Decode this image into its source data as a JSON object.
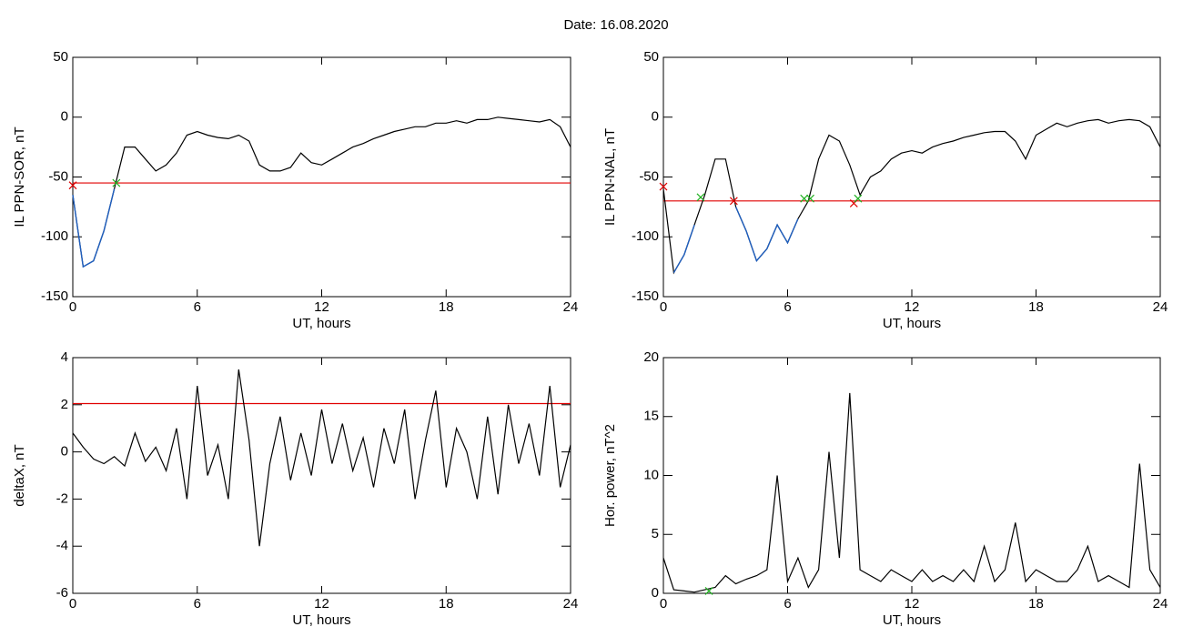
{
  "title": "Date:  16.08.2020",
  "chart_data": [
    {
      "type": "line",
      "ylabel": "IL PPN-SOR, nT",
      "xlabel": "UT, hours",
      "color": "#000000",
      "below_color": "#1f5fbf",
      "threshold": -55,
      "threshold_color": "#e00000",
      "xlim": [
        0,
        24
      ],
      "ylim": [
        -150,
        50
      ],
      "xticks": [
        0,
        6,
        12,
        18,
        24
      ],
      "yticks": [
        -150,
        -100,
        -50,
        0,
        50
      ],
      "x": [
        0,
        0.5,
        1,
        1.5,
        2,
        2.5,
        3,
        3.5,
        4,
        4.5,
        5,
        5.5,
        6,
        6.5,
        7,
        7.5,
        8,
        8.5,
        9,
        9.5,
        10,
        10.5,
        11,
        11.5,
        12,
        12.5,
        13,
        13.5,
        14,
        14.5,
        15,
        15.5,
        16,
        16.5,
        17,
        17.5,
        18,
        18.5,
        19,
        19.5,
        20,
        20.5,
        21,
        21.5,
        22,
        22.5,
        23,
        23.5,
        24
      ],
      "values": [
        -65,
        -125,
        -120,
        -95,
        -60,
        -25,
        -25,
        -35,
        -45,
        -40,
        -30,
        -15,
        -12,
        -15,
        -17,
        -18,
        -15,
        -20,
        -40,
        -45,
        -45,
        -42,
        -30,
        -38,
        -40,
        -35,
        -30,
        -25,
        -22,
        -18,
        -15,
        -12,
        -10,
        -8,
        -8,
        -5,
        -5,
        -3,
        -5,
        -2,
        -2,
        0,
        -1,
        -2,
        -3,
        -4,
        -2,
        -8,
        -25
      ],
      "markers": [
        {
          "x": 0,
          "y": -57,
          "color": "#e00000"
        },
        {
          "x": 2.1,
          "y": -55,
          "color": "#20b020"
        }
      ]
    },
    {
      "type": "line",
      "ylabel": "IL PPN-NAL, nT",
      "xlabel": "UT, hours",
      "color": "#000000",
      "below_color": "#1f5fbf",
      "threshold": -70,
      "threshold_color": "#e00000",
      "xlim": [
        0,
        24
      ],
      "ylim": [
        -150,
        50
      ],
      "xticks": [
        0,
        6,
        12,
        18,
        24
      ],
      "yticks": [
        -150,
        -100,
        -50,
        0,
        50
      ],
      "x": [
        0,
        0.5,
        1,
        1.5,
        2,
        2.5,
        3,
        3.5,
        4,
        4.5,
        5,
        5.5,
        6,
        6.5,
        7,
        7.5,
        8,
        8.5,
        9,
        9.5,
        10,
        10.5,
        11,
        11.5,
        12,
        12.5,
        13,
        13.5,
        14,
        14.5,
        15,
        15.5,
        16,
        16.5,
        17,
        17.5,
        18,
        18.5,
        19,
        19.5,
        20,
        20.5,
        21,
        21.5,
        22,
        22.5,
        23,
        23.5,
        24
      ],
      "values": [
        -60,
        -130,
        -115,
        -90,
        -65,
        -35,
        -35,
        -75,
        -95,
        -120,
        -110,
        -90,
        -105,
        -85,
        -70,
        -35,
        -15,
        -20,
        -40,
        -65,
        -50,
        -45,
        -35,
        -30,
        -28,
        -30,
        -25,
        -22,
        -20,
        -17,
        -15,
        -13,
        -12,
        -12,
        -20,
        -35,
        -15,
        -10,
        -5,
        -8,
        -5,
        -3,
        -2,
        -5,
        -3,
        -2,
        -3,
        -8,
        -25
      ],
      "markers": [
        {
          "x": 0,
          "y": -58,
          "color": "#e00000"
        },
        {
          "x": 1.8,
          "y": -67,
          "color": "#20b020"
        },
        {
          "x": 3.4,
          "y": -70,
          "color": "#e00000"
        },
        {
          "x": 6.8,
          "y": -68,
          "color": "#20b020"
        },
        {
          "x": 7.1,
          "y": -68,
          "color": "#20b020"
        },
        {
          "x": 9.2,
          "y": -72,
          "color": "#e00000"
        },
        {
          "x": 9.4,
          "y": -68,
          "color": "#20b020"
        }
      ]
    },
    {
      "type": "line",
      "ylabel": "deltaX, nT",
      "xlabel": "UT, hours",
      "color": "#000000",
      "threshold": 2.05,
      "threshold_color": "#e00000",
      "xlim": [
        0,
        24
      ],
      "ylim": [
        -6,
        4
      ],
      "xticks": [
        0,
        6,
        12,
        18,
        24
      ],
      "yticks": [
        -6,
        -4,
        -2,
        0,
        2,
        4
      ],
      "x": [
        0,
        0.5,
        1,
        1.5,
        2,
        2.5,
        3,
        3.5,
        4,
        4.5,
        5,
        5.5,
        6,
        6.5,
        7,
        7.5,
        8,
        8.5,
        9,
        9.5,
        10,
        10.5,
        11,
        11.5,
        12,
        12.5,
        13,
        13.5,
        14,
        14.5,
        15,
        15.5,
        16,
        16.5,
        17,
        17.5,
        18,
        18.5,
        19,
        19.5,
        20,
        20.5,
        21,
        21.5,
        22,
        22.5,
        23,
        23.5,
        24
      ],
      "values": [
        0.8,
        0.2,
        -0.3,
        -0.5,
        -0.2,
        -0.6,
        0.8,
        -0.4,
        0.2,
        -0.8,
        1.0,
        -2.0,
        2.8,
        -1.0,
        0.3,
        -2.0,
        3.5,
        0.5,
        -4.0,
        -0.5,
        1.5,
        -1.2,
        0.8,
        -1.0,
        1.8,
        -0.5,
        1.2,
        -0.8,
        0.6,
        -1.5,
        1.0,
        -0.5,
        1.8,
        -2.0,
        0.5,
        2.6,
        -1.5,
        1.0,
        0.0,
        -2.0,
        1.5,
        -1.8,
        2.0,
        -0.5,
        1.2,
        -1.0,
        2.8,
        -1.5,
        0.3
      ]
    },
    {
      "type": "line",
      "ylabel": "Hor. power, nT^2",
      "xlabel": "UT, hours",
      "color": "#000000",
      "xlim": [
        0,
        24
      ],
      "ylim": [
        0,
        20
      ],
      "xticks": [
        0,
        6,
        12,
        18,
        24
      ],
      "yticks": [
        0,
        5,
        10,
        15,
        20
      ],
      "x": [
        0,
        0.5,
        1,
        1.5,
        2,
        2.5,
        3,
        3.5,
        4,
        4.5,
        5,
        5.5,
        6,
        6.5,
        7,
        7.5,
        8,
        8.5,
        9,
        9.5,
        10,
        10.5,
        11,
        11.5,
        12,
        12.5,
        13,
        13.5,
        14,
        14.5,
        15,
        15.5,
        16,
        16.5,
        17,
        17.5,
        18,
        18.5,
        19,
        19.5,
        20,
        20.5,
        21,
        21.5,
        22,
        22.5,
        23,
        23.5,
        24
      ],
      "values": [
        3,
        0.3,
        0.2,
        0.1,
        0.3,
        0.5,
        1.5,
        0.8,
        1.2,
        1.5,
        2,
        10,
        1,
        3,
        0.5,
        2,
        12,
        3,
        17,
        2,
        1.5,
        1,
        2,
        1.5,
        1,
        2,
        1,
        1.5,
        1,
        2,
        1,
        4,
        1,
        2,
        6,
        1,
        2,
        1.5,
        1,
        1,
        2,
        4,
        1,
        1.5,
        1,
        0.5,
        11,
        2,
        0.5
      ],
      "markers": [
        {
          "x": 2.2,
          "y": 0.2,
          "color": "#20b020"
        }
      ]
    }
  ]
}
